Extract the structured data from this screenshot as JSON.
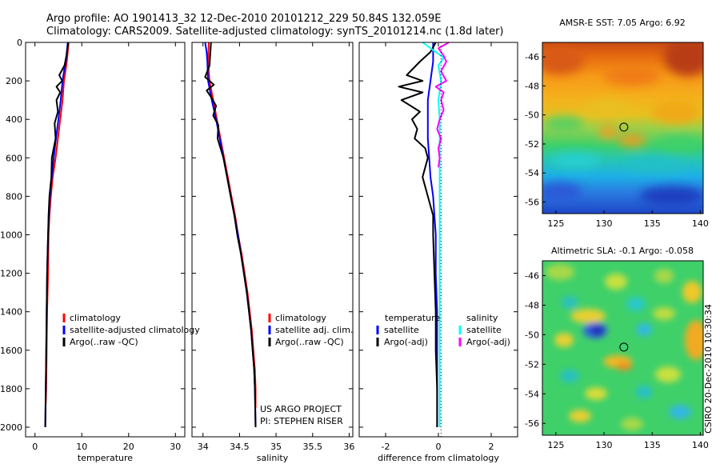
{
  "figure": {
    "title_line1": "Argo profile: AO 1901413_32 12-Dec-2010 20101212_229 50.84S 132.059E",
    "title_line2": "Climatology: CARS2009. Satellite-adjusted climatology: synTS_20101214.nc (1.8d later)",
    "credit_project": "US ARGO PROJECT",
    "credit_pi": "PI: STEPHEN RISER",
    "stamp": "CSIRO 20-Dec-2010 10:30:34"
  },
  "colors": {
    "climatology": "#ff0000",
    "satellite": "#0000ff",
    "argo": "#000000",
    "diff_salinity_satellite": "#00ffff",
    "diff_salinity_argo": "#ff00ff"
  },
  "chart_data": [
    {
      "type": "line",
      "id": "temperature",
      "xlabel": "temperature",
      "ylabel": "",
      "xlim": [
        -2,
        32
      ],
      "ylim": [
        2050,
        0
      ],
      "xticks": [
        0,
        10,
        20,
        30
      ],
      "yticks": [
        0,
        200,
        400,
        600,
        800,
        1000,
        1200,
        1400,
        1600,
        1800,
        2000
      ],
      "legend_position": "lower-right",
      "series": [
        {
          "name": "climatology",
          "color": "#ff0000",
          "points": [
            [
              7.2,
              0
            ],
            [
              7.0,
              50
            ],
            [
              6.8,
              100
            ],
            [
              6.5,
              150
            ],
            [
              6.2,
              200
            ],
            [
              5.9,
              300
            ],
            [
              5.4,
              400
            ],
            [
              4.9,
              500
            ],
            [
              4.4,
              600
            ],
            [
              3.8,
              700
            ],
            [
              3.4,
              800
            ],
            [
              3.1,
              900
            ],
            [
              2.9,
              1000
            ],
            [
              2.8,
              1200
            ],
            [
              2.6,
              1400
            ],
            [
              2.5,
              1600
            ],
            [
              2.4,
              1800
            ],
            [
              2.3,
              1880
            ]
          ]
        },
        {
          "name": "satellite-adjusted climatology",
          "color": "#0000ff",
          "points": [
            [
              7.0,
              0
            ],
            [
              6.8,
              50
            ],
            [
              6.6,
              100
            ],
            [
              6.2,
              150
            ],
            [
              5.9,
              200
            ],
            [
              5.5,
              300
            ],
            [
              5.0,
              400
            ],
            [
              4.5,
              500
            ],
            [
              4.0,
              600
            ],
            [
              3.6,
              700
            ],
            [
              3.2,
              800
            ],
            [
              3.0,
              900
            ],
            [
              2.8,
              1000
            ],
            [
              2.6,
              1200
            ],
            [
              2.5,
              1400
            ],
            [
              2.4,
              1600
            ],
            [
              2.3,
              1800
            ],
            [
              2.2,
              2000
            ]
          ]
        },
        {
          "name": "Argo(..raw -QC)",
          "color": "#000000",
          "points": [
            [
              7.1,
              0
            ],
            [
              6.8,
              60
            ],
            [
              6.3,
              120
            ],
            [
              5.2,
              170
            ],
            [
              5.8,
              200
            ],
            [
              4.6,
              230
            ],
            [
              5.4,
              260
            ],
            [
              4.6,
              300
            ],
            [
              4.9,
              360
            ],
            [
              4.2,
              420
            ],
            [
              4.4,
              500
            ],
            [
              3.6,
              600
            ],
            [
              3.5,
              700
            ],
            [
              3.1,
              800
            ],
            [
              2.9,
              900
            ],
            [
              2.8,
              1000
            ],
            [
              2.6,
              1200
            ],
            [
              2.5,
              1400
            ],
            [
              2.4,
              1600
            ],
            [
              2.3,
              1800
            ],
            [
              2.2,
              2000
            ]
          ]
        }
      ]
    },
    {
      "type": "line",
      "id": "salinity",
      "xlabel": "salinity",
      "ylabel": "",
      "xlim": [
        33.85,
        36.05
      ],
      "ylim": [
        2050,
        0
      ],
      "xticks": [
        34,
        34.5,
        35,
        35.5,
        36
      ],
      "legend_position": "lower-right",
      "series": [
        {
          "name": "climatology",
          "color": "#ff0000",
          "points": [
            [
              34.08,
              0
            ],
            [
              34.07,
              100
            ],
            [
              34.09,
              200
            ],
            [
              34.14,
              300
            ],
            [
              34.19,
              400
            ],
            [
              34.24,
              500
            ],
            [
              34.29,
              600
            ],
            [
              34.34,
              700
            ],
            [
              34.39,
              800
            ],
            [
              34.44,
              900
            ],
            [
              34.48,
              1000
            ],
            [
              34.53,
              1100
            ],
            [
              34.57,
              1200
            ],
            [
              34.61,
              1300
            ],
            [
              34.64,
              1400
            ],
            [
              34.67,
              1500
            ],
            [
              34.69,
              1600
            ],
            [
              34.71,
              1700
            ],
            [
              34.72,
              1800
            ],
            [
              34.72,
              1900
            ]
          ]
        },
        {
          "name": "satellite adj. clim.",
          "color": "#0000ff",
          "points": [
            [
              34.03,
              0
            ],
            [
              34.05,
              50
            ],
            [
              34.06,
              100
            ],
            [
              34.07,
              200
            ],
            [
              34.12,
              300
            ],
            [
              34.18,
              400
            ],
            [
              34.23,
              500
            ],
            [
              34.28,
              600
            ],
            [
              34.33,
              700
            ],
            [
              34.38,
              800
            ],
            [
              34.43,
              900
            ],
            [
              34.48,
              1000
            ],
            [
              34.52,
              1100
            ],
            [
              34.56,
              1200
            ],
            [
              34.6,
              1300
            ],
            [
              34.63,
              1400
            ],
            [
              34.66,
              1500
            ],
            [
              34.68,
              1600
            ],
            [
              34.7,
              1700
            ],
            [
              34.71,
              1800
            ],
            [
              34.72,
              2000
            ]
          ]
        },
        {
          "name": "Argo(..raw -QC)",
          "color": "#000000",
          "points": [
            [
              34.11,
              0
            ],
            [
              34.1,
              60
            ],
            [
              34.09,
              120
            ],
            [
              34.03,
              180
            ],
            [
              34.15,
              220
            ],
            [
              34.05,
              250
            ],
            [
              34.12,
              290
            ],
            [
              34.18,
              330
            ],
            [
              34.14,
              380
            ],
            [
              34.21,
              430
            ],
            [
              34.2,
              500
            ],
            [
              34.28,
              600
            ],
            [
              34.33,
              700
            ],
            [
              34.38,
              800
            ],
            [
              34.43,
              900
            ],
            [
              34.47,
              1000
            ],
            [
              34.52,
              1100
            ],
            [
              34.56,
              1200
            ],
            [
              34.6,
              1300
            ],
            [
              34.63,
              1400
            ],
            [
              34.66,
              1500
            ],
            [
              34.68,
              1600
            ],
            [
              34.7,
              1700
            ],
            [
              34.71,
              1800
            ],
            [
              34.72,
              2000
            ]
          ]
        }
      ]
    },
    {
      "type": "line",
      "id": "difference",
      "xlabel": "difference from climatology",
      "ylabel": "",
      "xlim": [
        -3,
        3
      ],
      "ylim": [
        2050,
        0
      ],
      "xticks": [
        -2,
        0,
        2
      ],
      "legend_groups": [
        "temperature",
        "salinity"
      ],
      "legend_position": "lower-center",
      "series": [
        {
          "name": "temperature satellite",
          "group": "temperature",
          "legend_label": "satellite",
          "color": "#0000ff",
          "points": [
            [
              -0.2,
              0
            ],
            [
              -0.2,
              50
            ],
            [
              -0.2,
              100
            ],
            [
              -0.3,
              200
            ],
            [
              -0.4,
              300
            ],
            [
              -0.4,
              400
            ],
            [
              -0.4,
              500
            ],
            [
              -0.35,
              600
            ],
            [
              -0.3,
              700
            ],
            [
              -0.2,
              800
            ],
            [
              -0.15,
              900
            ],
            [
              -0.1,
              1000
            ],
            [
              -0.1,
              1200
            ],
            [
              -0.05,
              1400
            ],
            [
              -0.05,
              1600
            ],
            [
              -0.05,
              1800
            ],
            [
              -0.05,
              2000
            ]
          ]
        },
        {
          "name": "temperature Argo(-adj)",
          "group": "temperature",
          "legend_label": "Argo(-adj)",
          "color": "#000000",
          "points": [
            [
              -0.1,
              0
            ],
            [
              -0.3,
              50
            ],
            [
              -0.7,
              100
            ],
            [
              -1.2,
              170
            ],
            [
              -0.6,
              200
            ],
            [
              -1.5,
              230
            ],
            [
              -0.6,
              260
            ],
            [
              -1.4,
              300
            ],
            [
              -0.7,
              360
            ],
            [
              -1.0,
              400
            ],
            [
              -0.8,
              450
            ],
            [
              -0.9,
              500
            ],
            [
              -0.5,
              550
            ],
            [
              -0.4,
              600
            ],
            [
              -0.6,
              700
            ],
            [
              -0.4,
              800
            ],
            [
              -0.2,
              900
            ],
            [
              -0.2,
              1000
            ],
            [
              -0.15,
              1200
            ],
            [
              -0.1,
              1400
            ],
            [
              -0.1,
              1600
            ],
            [
              -0.05,
              1800
            ],
            [
              -0.05,
              2000
            ]
          ]
        },
        {
          "name": "salinity satellite",
          "group": "salinity",
          "legend_label": "satellite",
          "color": "#00ffff",
          "points": [
            [
              -0.6,
              0
            ],
            [
              -0.2,
              40
            ],
            [
              0.2,
              80
            ],
            [
              0.0,
              120
            ],
            [
              0.1,
              200
            ],
            [
              0.0,
              300
            ],
            [
              0.05,
              400
            ],
            [
              0.05,
              500
            ],
            [
              0.05,
              700
            ],
            [
              0.05,
              900
            ],
            [
              0.05,
              1100
            ],
            [
              0.05,
              1300
            ],
            [
              0.05,
              1500
            ],
            [
              0.05,
              1700
            ],
            [
              0.05,
              1900
            ],
            [
              0.05,
              2000
            ]
          ]
        },
        {
          "name": "salinity Argo(-adj)",
          "group": "salinity",
          "legend_label": "Argo(-adj)",
          "color": "#ff00ff",
          "points": [
            [
              0.4,
              0
            ],
            [
              0.0,
              30
            ],
            [
              0.2,
              70
            ],
            [
              0.3,
              100
            ],
            [
              0.1,
              150
            ],
            [
              0.3,
              200
            ],
            [
              -0.1,
              230
            ],
            [
              0.2,
              260
            ],
            [
              0.1,
              300
            ],
            [
              0.2,
              350
            ],
            [
              0.05,
              400
            ],
            [
              -0.05,
              450
            ],
            [
              0.1,
              500
            ],
            [
              0.0,
              550
            ],
            [
              0.05,
              600
            ],
            [
              0.0,
              650
            ]
          ]
        }
      ]
    },
    {
      "type": "heatmap",
      "id": "sst_map",
      "title": "AMSR-E SST: 7.05  Argo: 6.92",
      "xlim": [
        123.6,
        140.3
      ],
      "ylim": [
        -56.8,
        -45.0
      ],
      "xticks": [
        125,
        130,
        135,
        140
      ],
      "yticks": [
        -46,
        -48,
        -50,
        -52,
        -54,
        -56
      ],
      "marker": {
        "lon": 132.059,
        "lat": -50.84
      }
    },
    {
      "type": "heatmap",
      "id": "sla_map",
      "title": "Altimetric SLA: -0.1  Argo: -0.058",
      "xlim": [
        123.6,
        140.3
      ],
      "ylim": [
        -56.8,
        -45.0
      ],
      "xticks": [
        125,
        130,
        135,
        140
      ],
      "yticks": [
        -46,
        -48,
        -50,
        -52,
        -54,
        -56
      ],
      "marker": {
        "lon": 132.059,
        "lat": -50.84
      }
    }
  ]
}
